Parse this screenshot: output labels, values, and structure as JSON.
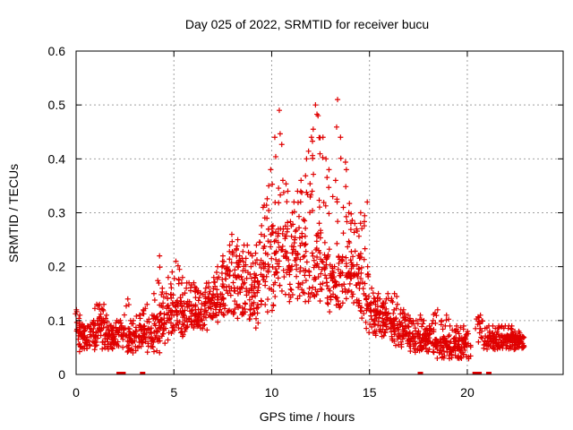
{
  "chart_data": {
    "type": "scatter",
    "title": "Day 025 of 2022, SRMTID for receiver bucu",
    "xlabel": "GPS time / hours",
    "ylabel": "SRMTID / TECUs",
    "xlim": [
      0,
      24.9
    ],
    "ylim": [
      0,
      0.6
    ],
    "x_ticks": [
      0,
      5,
      10,
      15,
      20
    ],
    "y_ticks": [
      0,
      0.1,
      0.2,
      0.3,
      0.4,
      0.5,
      0.6
    ],
    "x_tick_labels": [
      "0",
      "5",
      "10",
      "15",
      "20"
    ],
    "y_tick_labels": [
      "0",
      "0.1",
      "0.2",
      "0.3",
      "0.4",
      "0.5",
      "0.6"
    ],
    "grid": true,
    "marker": "plus",
    "color": "#e00000",
    "series": [
      {
        "name": "SRMTID",
        "x": [
          0.0,
          0.2,
          0.4,
          0.6,
          0.8,
          1.0,
          1.2,
          1.4,
          1.6,
          1.8,
          2.0,
          2.2,
          2.6,
          2.8,
          3.0,
          3.2,
          3.4,
          3.6,
          3.8,
          4.0,
          4.2,
          4.4,
          4.6,
          4.8,
          5.0,
          5.2,
          5.4,
          5.6,
          5.8,
          6.0,
          6.2,
          6.4,
          6.6,
          6.8,
          7.0,
          7.2,
          7.4,
          7.6,
          7.8,
          8.0,
          8.2,
          8.4,
          8.6,
          8.8,
          9.0,
          9.2,
          9.4,
          9.6,
          9.8,
          10.0,
          10.2,
          10.4,
          10.6,
          10.8,
          11.0,
          11.2,
          11.4,
          11.6,
          11.8,
          12.0,
          12.2,
          12.4,
          12.6,
          12.8,
          13.0,
          13.2,
          13.4,
          13.6,
          13.8,
          14.0,
          14.2,
          14.4,
          14.6,
          14.8,
          15.0,
          15.2,
          15.4,
          15.6,
          15.8,
          16.0,
          16.2,
          16.4,
          16.6,
          16.8,
          17.0,
          17.2,
          17.4,
          17.6,
          17.8,
          18.0,
          18.2,
          18.4,
          18.6,
          18.8,
          19.0,
          19.2,
          19.4,
          19.6,
          19.8,
          20.0,
          20.6,
          21.0,
          21.2,
          21.4,
          21.6,
          21.8,
          22.0,
          22.2,
          22.4,
          22.6,
          22.8
        ],
        "lower": [
          0.03,
          0.04,
          0.03,
          0.04,
          0.03,
          0.04,
          0.03,
          0.04,
          0.04,
          0.04,
          0.04,
          0.04,
          0.04,
          0.03,
          0.03,
          0.04,
          0.04,
          0.05,
          0.03,
          0.02,
          0.02,
          0.03,
          0.04,
          0.05,
          0.05,
          0.06,
          0.05,
          0.06,
          0.07,
          0.07,
          0.06,
          0.07,
          0.07,
          0.08,
          0.08,
          0.08,
          0.08,
          0.09,
          0.09,
          0.08,
          0.09,
          0.08,
          0.08,
          0.07,
          0.06,
          0.07,
          0.08,
          0.09,
          0.08,
          0.08,
          0.09,
          0.1,
          0.11,
          0.11,
          0.1,
          0.11,
          0.11,
          0.11,
          0.1,
          0.1,
          0.11,
          0.11,
          0.1,
          0.09,
          0.09,
          0.09,
          0.1,
          0.1,
          0.1,
          0.1,
          0.1,
          0.1,
          0.09,
          0.08,
          0.06,
          0.06,
          0.06,
          0.05,
          0.05,
          0.05,
          0.05,
          0.04,
          0.04,
          0.04,
          0.04,
          0.03,
          0.03,
          0.03,
          0.03,
          0.03,
          0.03,
          0.03,
          0.02,
          0.02,
          0.02,
          0.02,
          0.02,
          0.02,
          0.02,
          0.02,
          0.05,
          0.04,
          0.04,
          0.04,
          0.04,
          0.04,
          0.04,
          0.04,
          0.04,
          0.04,
          0.04
        ],
        "typical": [
          0.07,
          0.07,
          0.06,
          0.06,
          0.07,
          0.08,
          0.07,
          0.08,
          0.07,
          0.06,
          0.07,
          0.07,
          0.07,
          0.06,
          0.06,
          0.07,
          0.07,
          0.08,
          0.06,
          0.07,
          0.08,
          0.08,
          0.09,
          0.1,
          0.11,
          0.11,
          0.11,
          0.1,
          0.11,
          0.12,
          0.11,
          0.1,
          0.11,
          0.12,
          0.12,
          0.13,
          0.14,
          0.15,
          0.16,
          0.17,
          0.17,
          0.16,
          0.16,
          0.15,
          0.13,
          0.14,
          0.16,
          0.18,
          0.19,
          0.2,
          0.2,
          0.2,
          0.21,
          0.21,
          0.19,
          0.2,
          0.2,
          0.21,
          0.19,
          0.18,
          0.2,
          0.21,
          0.19,
          0.17,
          0.16,
          0.16,
          0.17,
          0.18,
          0.17,
          0.17,
          0.17,
          0.18,
          0.17,
          0.15,
          0.11,
          0.1,
          0.1,
          0.09,
          0.09,
          0.09,
          0.09,
          0.08,
          0.08,
          0.07,
          0.07,
          0.06,
          0.06,
          0.06,
          0.06,
          0.06,
          0.06,
          0.05,
          0.05,
          0.05,
          0.05,
          0.04,
          0.05,
          0.05,
          0.05,
          0.05,
          0.08,
          0.06,
          0.06,
          0.06,
          0.06,
          0.06,
          0.06,
          0.06,
          0.06,
          0.06,
          0.06
        ],
        "upper": [
          0.12,
          0.11,
          0.09,
          0.09,
          0.1,
          0.13,
          0.13,
          0.13,
          0.11,
          0.09,
          0.1,
          0.1,
          0.14,
          0.1,
          0.1,
          0.11,
          0.12,
          0.13,
          0.11,
          0.15,
          0.22,
          0.16,
          0.15,
          0.18,
          0.19,
          0.21,
          0.18,
          0.16,
          0.17,
          0.17,
          0.16,
          0.15,
          0.16,
          0.17,
          0.18,
          0.2,
          0.21,
          0.22,
          0.24,
          0.26,
          0.25,
          0.22,
          0.24,
          0.24,
          0.22,
          0.24,
          0.26,
          0.31,
          0.35,
          0.38,
          0.44,
          0.49,
          0.36,
          0.34,
          0.3,
          0.32,
          0.34,
          0.36,
          0.4,
          0.44,
          0.5,
          0.48,
          0.44,
          0.4,
          0.38,
          0.36,
          0.51,
          0.44,
          0.38,
          0.3,
          0.28,
          0.27,
          0.3,
          0.32,
          0.2,
          0.16,
          0.15,
          0.14,
          0.14,
          0.15,
          0.15,
          0.13,
          0.12,
          0.12,
          0.11,
          0.1,
          0.1,
          0.11,
          0.1,
          0.09,
          0.1,
          0.12,
          0.1,
          0.09,
          0.11,
          0.09,
          0.09,
          0.08,
          0.09,
          0.08,
          0.11,
          0.09,
          0.08,
          0.09,
          0.09,
          0.09,
          0.09,
          0.09,
          0.08,
          0.08,
          0.07
        ],
        "near_zero_x": [
          2.2,
          2.4,
          3.4,
          17.6,
          20.4,
          20.6,
          21.1
        ]
      }
    ]
  }
}
